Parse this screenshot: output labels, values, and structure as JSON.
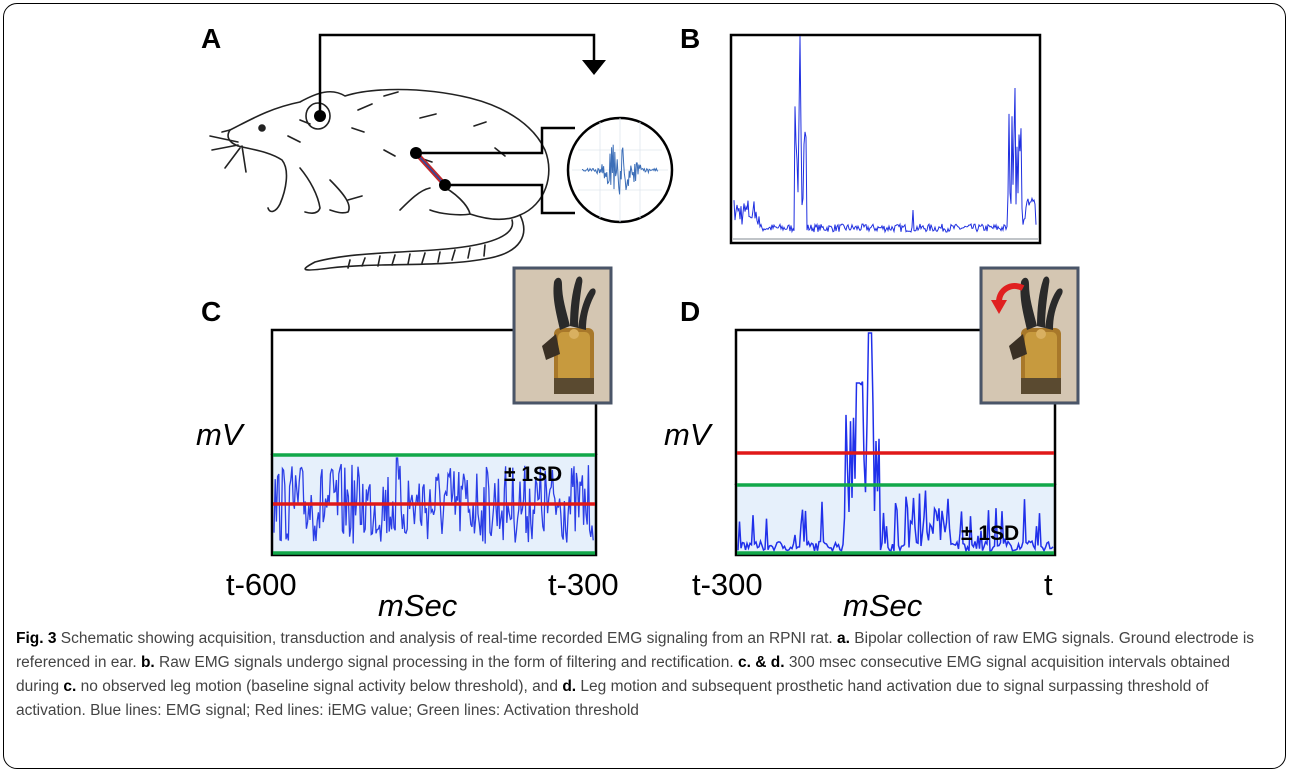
{
  "panels": {
    "a": {
      "label": "A"
    },
    "b": {
      "label": "B"
    },
    "c": {
      "label": "C",
      "y_unit": "mV",
      "x_unit": "mSec",
      "x_start": "t-600",
      "x_end": "t-300",
      "sd_label": "± 1SD"
    },
    "d": {
      "label": "D",
      "y_unit": "mV",
      "x_unit": "mSec",
      "x_start": "t-300",
      "x_end": "t",
      "sd_label": "± 1SD"
    }
  },
  "colors": {
    "emg_signal": "#1f2fe0",
    "iemg": "#e01818",
    "threshold": "#12a84a",
    "baseline_fill": "#e6f0fb"
  },
  "icons": [
    "rat-drawing-icon",
    "emg-waveform-icon",
    "prosthetic-hand-icon",
    "rotation-arrow-icon"
  ],
  "caption": {
    "fig_label": "Fig. 3",
    "intro": "Schematic showing acquisition, transduction and analysis of real-time recorded EMG signaling from an RPNI rat.",
    "a_label": "a.",
    "a_text": "Bipolar collection of raw EMG signals. Ground electrode is referenced in ear.",
    "b_label": "b.",
    "b_text": "Raw EMG signals undergo signal processing in the form of filtering and rectification.",
    "cd_label": "c. & d.",
    "cd_text": "300 msec consecutive EMG signal acquisition intervals obtained during",
    "c_label": "c.",
    "c_text": "no observed leg motion (baseline signal activity below threshold), and",
    "d_label": "d.",
    "d_text": "Leg motion and subsequent prosthetic hand activation due to signal surpassing threshold of activation. Blue lines: EMG signal; Red lines: iEMG value; Green lines: Activation threshold"
  }
}
